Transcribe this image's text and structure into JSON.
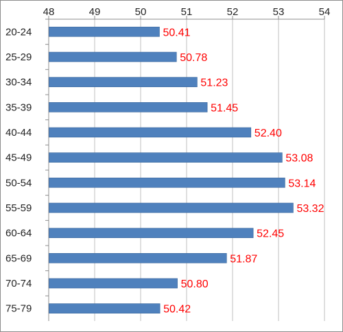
{
  "chart_data": {
    "type": "bar",
    "orientation": "horizontal",
    "categories": [
      "20-24",
      "25-29",
      "30-34",
      "35-39",
      "40-44",
      "45-49",
      "50-54",
      "55-59",
      "60-64",
      "65-69",
      "70-74",
      "75-79"
    ],
    "values": [
      50.41,
      50.78,
      51.23,
      51.45,
      52.4,
      53.08,
      53.14,
      53.32,
      52.45,
      51.87,
      50.8,
      50.42
    ],
    "data_labels": [
      "50.41",
      "50.78",
      "51.23",
      "51.45",
      "52.40",
      "53.08",
      "53.14",
      "53.32",
      "52.45",
      "51.87",
      "50.80",
      "50.42"
    ],
    "x_ticks": [
      "48",
      "49",
      "50",
      "51",
      "52",
      "53",
      "54"
    ],
    "xlim": [
      48,
      54
    ],
    "x_axis_position": "top",
    "category_order": "top-to-bottom",
    "grid": true,
    "legend": "none",
    "title": "",
    "xlabel": "",
    "ylabel": "",
    "colors": {
      "bar": "#4f81bd",
      "bar_edge": "#3a679c",
      "data_label": "#ff0000",
      "grid": "#bfbfbf",
      "axis": "#8c8c8c"
    }
  }
}
